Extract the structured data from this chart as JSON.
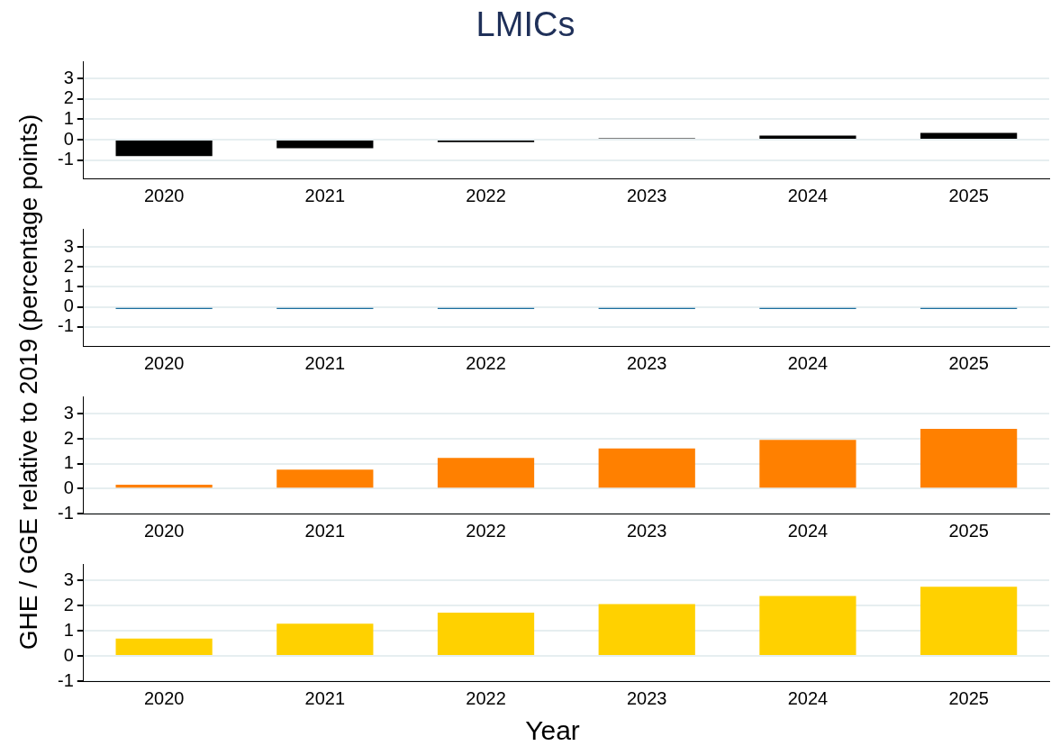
{
  "chart_data": [
    {
      "type": "bar",
      "title": "LMICs",
      "ylabel": "GHE / GGE relative to 2019 (percentage points)",
      "categories": [
        "2020",
        "2021",
        "2022",
        "2023",
        "2024",
        "2025"
      ],
      "series": [
        {
          "color": "#000000",
          "values": [
            -0.8,
            -0.42,
            -0.12,
            0.07,
            0.2,
            0.33
          ]
        }
      ],
      "ylim": [
        -1.9,
        3.85
      ],
      "yticks": [
        -1,
        0,
        1,
        2,
        3
      ],
      "grid": "y",
      "legend": false
    },
    {
      "type": "bar",
      "categories": [
        "2020",
        "2021",
        "2022",
        "2023",
        "2024",
        "2025"
      ],
      "series": [
        {
          "color": "#1a6e9e",
          "values": [
            -0.1,
            -0.1,
            -0.1,
            -0.1,
            -0.1,
            -0.1
          ]
        }
      ],
      "ylim": [
        -1.95,
        3.9
      ],
      "yticks": [
        -1,
        0,
        1,
        2,
        3
      ],
      "grid": "y",
      "legend": false
    },
    {
      "type": "bar",
      "categories": [
        "2020",
        "2021",
        "2022",
        "2023",
        "2024",
        "2025"
      ],
      "series": [
        {
          "color": "#ff8000",
          "values": [
            0.16,
            0.76,
            1.23,
            1.61,
            1.96,
            2.4
          ]
        }
      ],
      "ylim": [
        -1,
        3.7
      ],
      "yticks": [
        -1,
        0,
        1,
        2,
        3
      ],
      "grid": "y",
      "legend": false
    },
    {
      "type": "bar",
      "xlabel": "Year",
      "categories": [
        "2020",
        "2021",
        "2022",
        "2023",
        "2024",
        "2025"
      ],
      "series": [
        {
          "color": "#ffd100",
          "values": [
            0.69,
            1.28,
            1.72,
            2.06,
            2.38,
            2.75
          ]
        }
      ],
      "ylim": [
        -1,
        3.65
      ],
      "yticks": [
        -1,
        0,
        1,
        2,
        3
      ],
      "grid": "y",
      "legend": false
    }
  ]
}
